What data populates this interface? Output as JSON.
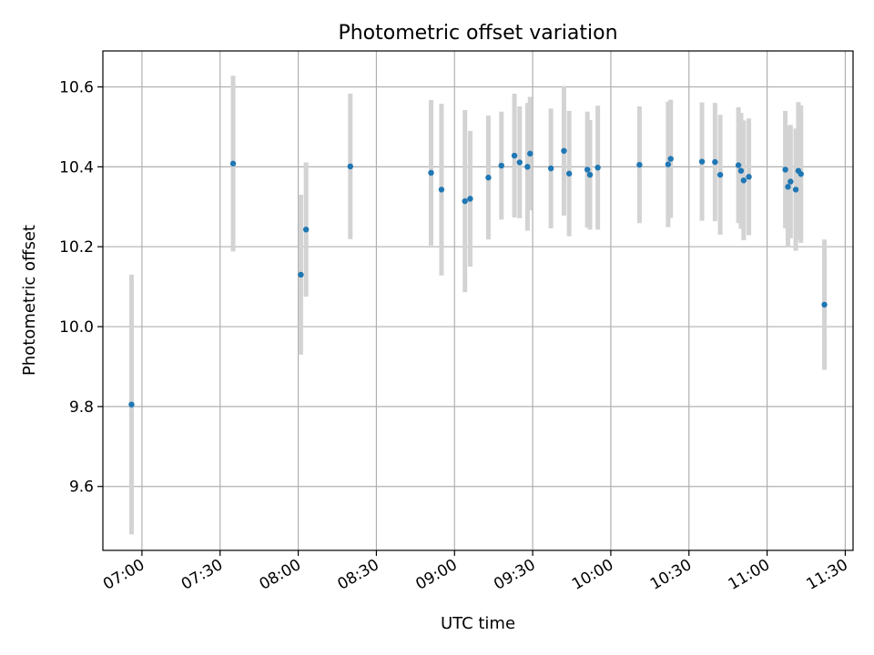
{
  "chart_data": {
    "type": "scatter",
    "title": "Photometric offset variation",
    "xlabel": "UTC time",
    "ylabel": "Photometric offset",
    "x_unit": "UTC time (HH:MM)",
    "xlim": [
      "06:45",
      "11:33"
    ],
    "ylim": [
      9.44,
      10.69
    ],
    "x_ticks": [
      "07:00",
      "07:30",
      "08:00",
      "08:30",
      "09:00",
      "09:30",
      "10:00",
      "10:30",
      "11:00",
      "11:30"
    ],
    "y_ticks": [
      "9.6",
      "9.8",
      "10.0",
      "10.2",
      "10.4",
      "10.6"
    ],
    "grid": true,
    "marker_color": "#1f77b4",
    "errorbar_color": "#d3d3d3",
    "series": [
      {
        "points": [
          {
            "x": "06:56",
            "y": 9.805,
            "err": 0.325
          },
          {
            "x": "07:35",
            "y": 10.408,
            "err": 0.22
          },
          {
            "x": "08:01",
            "y": 10.13,
            "err": 0.2
          },
          {
            "x": "08:03",
            "y": 10.243,
            "err": 0.168
          },
          {
            "x": "08:20",
            "y": 10.401,
            "err": 0.182
          },
          {
            "x": "08:51",
            "y": 10.385,
            "err": 0.182
          },
          {
            "x": "08:55",
            "y": 10.343,
            "err": 0.215
          },
          {
            "x": "09:04",
            "y": 10.314,
            "err": 0.228
          },
          {
            "x": "09:06",
            "y": 10.32,
            "err": 0.17
          },
          {
            "x": "09:13",
            "y": 10.373,
            "err": 0.155
          },
          {
            "x": "09:18",
            "y": 10.403,
            "err": 0.135
          },
          {
            "x": "09:23",
            "y": 10.428,
            "err": 0.155
          },
          {
            "x": "09:25",
            "y": 10.411,
            "err": 0.14
          },
          {
            "x": "09:28",
            "y": 10.4,
            "err": 0.16
          },
          {
            "x": "09:29",
            "y": 10.433,
            "err": 0.142
          },
          {
            "x": "09:37",
            "y": 10.396,
            "err": 0.15
          },
          {
            "x": "09:42",
            "y": 10.44,
            "err": 0.162
          },
          {
            "x": "09:44",
            "y": 10.383,
            "err": 0.157
          },
          {
            "x": "09:51",
            "y": 10.393,
            "err": 0.145
          },
          {
            "x": "09:52",
            "y": 10.38,
            "err": 0.137
          },
          {
            "x": "09:55",
            "y": 10.398,
            "err": 0.155
          },
          {
            "x": "10:11",
            "y": 10.405,
            "err": 0.146
          },
          {
            "x": "10:22",
            "y": 10.406,
            "err": 0.157
          },
          {
            "x": "10:23",
            "y": 10.42,
            "err": 0.148
          },
          {
            "x": "10:35",
            "y": 10.413,
            "err": 0.148
          },
          {
            "x": "10:40",
            "y": 10.412,
            "err": 0.148
          },
          {
            "x": "10:42",
            "y": 10.38,
            "err": 0.15
          },
          {
            "x": "10:49",
            "y": 10.404,
            "err": 0.145
          },
          {
            "x": "10:50",
            "y": 10.39,
            "err": 0.145
          },
          {
            "x": "10:51",
            "y": 10.366,
            "err": 0.15
          },
          {
            "x": "10:53",
            "y": 10.375,
            "err": 0.146
          },
          {
            "x": "11:07",
            "y": 10.393,
            "err": 0.147
          },
          {
            "x": "11:08",
            "y": 10.35,
            "err": 0.152
          },
          {
            "x": "11:09",
            "y": 10.363,
            "err": 0.142
          },
          {
            "x": "11:11",
            "y": 10.343,
            "err": 0.153
          },
          {
            "x": "11:12",
            "y": 10.39,
            "err": 0.172
          },
          {
            "x": "11:13",
            "y": 10.382,
            "err": 0.172
          },
          {
            "x": "11:22",
            "y": 10.055,
            "err": 0.163
          }
        ]
      }
    ]
  }
}
